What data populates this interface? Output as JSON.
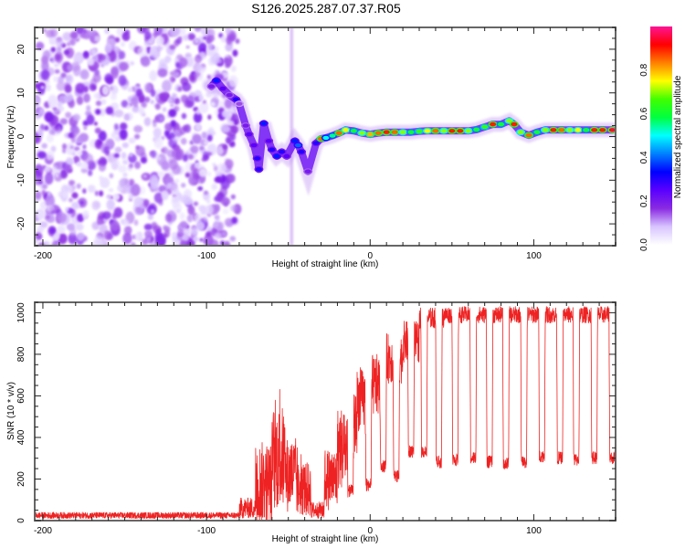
{
  "figure": {
    "title": "S126.2025.287.07.37.R05"
  },
  "chart_data": [
    {
      "type": "heatmap",
      "name": "spectrogram",
      "xlabel": "Height of straight line (km)",
      "ylabel": "Frequency (Hz)",
      "xlim": [
        -205,
        150
      ],
      "ylim": [
        -25,
        25
      ],
      "xticks": [
        -200,
        -100,
        0,
        100
      ],
      "yticks": [
        -20,
        -10,
        0,
        10,
        20
      ],
      "x_minor_step": 10,
      "y_minor_step": 2.5,
      "colorbar": {
        "label": "Normalized spectral amplitude",
        "range": [
          0.0,
          1.0
        ],
        "ticks": [
          "0.0",
          "0.2",
          "0.4",
          "0.6",
          "0.8"
        ],
        "colormap": [
          "#ffffff",
          "#d8c4ff",
          "#8a2be2",
          "#5a00ff",
          "#0000ff",
          "#0080ff",
          "#00ffff",
          "#00ff40",
          "#40ff00",
          "#ffff00",
          "#ff8000",
          "#ff0000",
          "#ff1493"
        ]
      },
      "noise_region": {
        "x_from": -205,
        "x_to": -85,
        "y_from": -25,
        "y_to": 25,
        "amplitude": 0.12
      },
      "signal_track": [
        {
          "x": -97,
          "y": 11.5,
          "a": 0.2
        },
        {
          "x": -94,
          "y": 12.8,
          "a": 0.35
        },
        {
          "x": -90,
          "y": 11,
          "a": 0.25
        },
        {
          "x": -86,
          "y": 9.5,
          "a": 0.2
        },
        {
          "x": -82,
          "y": 8.5,
          "a": 0.3
        },
        {
          "x": -80,
          "y": 7.5,
          "a": 0.15
        },
        {
          "x": -76,
          "y": 2.5,
          "a": 0.2
        },
        {
          "x": -74,
          "y": 0.5,
          "a": 0.25
        },
        {
          "x": -71,
          "y": -2,
          "a": 0.25
        },
        {
          "x": -69,
          "y": -5,
          "a": 0.3
        },
        {
          "x": -68,
          "y": -7.5,
          "a": 0.3
        },
        {
          "x": -65,
          "y": 3,
          "a": 0.35
        },
        {
          "x": -62,
          "y": -1,
          "a": 0.25
        },
        {
          "x": -60,
          "y": -3,
          "a": 0.3
        },
        {
          "x": -57,
          "y": -4.5,
          "a": 0.35
        },
        {
          "x": -54,
          "y": -3.5,
          "a": 0.3
        },
        {
          "x": -51,
          "y": -4.5,
          "a": 0.25
        },
        {
          "x": -46,
          "y": -1,
          "a": 0.35
        },
        {
          "x": -44,
          "y": -2,
          "a": 0.4
        },
        {
          "x": -42,
          "y": -3.5,
          "a": 0.3
        },
        {
          "x": -38,
          "y": -8,
          "a": 0.2
        },
        {
          "x": -33,
          "y": -1.5,
          "a": 0.3
        },
        {
          "x": -30,
          "y": -0.5,
          "a": 0.85
        },
        {
          "x": -27,
          "y": -0.3,
          "a": 0.5
        },
        {
          "x": -23,
          "y": 0.2,
          "a": 0.55
        },
        {
          "x": -19,
          "y": 0.8,
          "a": 0.85
        },
        {
          "x": -15,
          "y": 1.5,
          "a": 0.75
        },
        {
          "x": -10,
          "y": 1.3,
          "a": 0.6
        },
        {
          "x": -5,
          "y": 0.8,
          "a": 0.7
        },
        {
          "x": 0,
          "y": 0.5,
          "a": 0.8
        },
        {
          "x": 5,
          "y": 0.8,
          "a": 0.85
        },
        {
          "x": 10,
          "y": 1.0,
          "a": 0.9
        },
        {
          "x": 15,
          "y": 1.0,
          "a": 0.85
        },
        {
          "x": 20,
          "y": 1.0,
          "a": 0.7
        },
        {
          "x": 25,
          "y": 1.0,
          "a": 0.6
        },
        {
          "x": 30,
          "y": 1.2,
          "a": 0.65
        },
        {
          "x": 35,
          "y": 1.3,
          "a": 0.75
        },
        {
          "x": 40,
          "y": 1.3,
          "a": 0.85
        },
        {
          "x": 45,
          "y": 1.3,
          "a": 0.7
        },
        {
          "x": 50,
          "y": 1.3,
          "a": 0.9
        },
        {
          "x": 55,
          "y": 1.3,
          "a": 0.9
        },
        {
          "x": 60,
          "y": 1.3,
          "a": 0.7
        },
        {
          "x": 65,
          "y": 1.6,
          "a": 0.6
        },
        {
          "x": 70,
          "y": 2.2,
          "a": 0.65
        },
        {
          "x": 75,
          "y": 2.8,
          "a": 0.9
        },
        {
          "x": 80,
          "y": 2.8,
          "a": 0.6
        },
        {
          "x": 85,
          "y": 3.6,
          "a": 0.7
        },
        {
          "x": 88,
          "y": 2.8,
          "a": 0.9
        },
        {
          "x": 92,
          "y": 1.0,
          "a": 0.7
        },
        {
          "x": 97,
          "y": 0.3,
          "a": 0.85
        },
        {
          "x": 102,
          "y": 1.0,
          "a": 0.6
        },
        {
          "x": 107,
          "y": 1.5,
          "a": 0.7
        },
        {
          "x": 112,
          "y": 1.5,
          "a": 0.9
        },
        {
          "x": 117,
          "y": 1.5,
          "a": 0.85
        },
        {
          "x": 122,
          "y": 1.5,
          "a": 0.7
        },
        {
          "x": 127,
          "y": 1.5,
          "a": 0.75
        },
        {
          "x": 132,
          "y": 1.5,
          "a": 0.6
        },
        {
          "x": 137,
          "y": 1.5,
          "a": 0.9
        },
        {
          "x": 142,
          "y": 1.5,
          "a": 0.9
        },
        {
          "x": 148,
          "y": 1.5,
          "a": 0.95
        }
      ],
      "vertical_streaks": [
        {
          "x": -48,
          "y_from": -25,
          "y_to": 25,
          "a": 0.15
        }
      ]
    },
    {
      "type": "line",
      "name": "snr",
      "xlabel": "Height of straight line (km)",
      "ylabel": "SNR (10 * v/v)",
      "xlim": [
        -205,
        150
      ],
      "ylim": [
        0,
        1050
      ],
      "xticks": [
        -200,
        -100,
        0,
        100
      ],
      "yticks": [
        0,
        200,
        400,
        600,
        800,
        1000
      ],
      "x_minor_step": 10,
      "y_minor_step": 50,
      "color": "#ee2222",
      "series": [
        {
          "name": "SNR",
          "segments": [
            {
              "x_from": -205,
              "x_to": -80,
              "level": 25,
              "noise": 15
            },
            {
              "x_from": -80,
              "x_to": -70,
              "level": 60,
              "noise": 50
            },
            {
              "x_from": -70,
              "x_to": -60,
              "level": 180,
              "noise": 200,
              "peak": 400
            },
            {
              "x_from": -60,
              "x_to": -52,
              "level": 300,
              "noise": 250,
              "peak": 640
            },
            {
              "x_from": -52,
              "x_to": -45,
              "level": 220,
              "noise": 180,
              "peak": 440
            },
            {
              "x_from": -45,
              "x_to": -36,
              "level": 150,
              "noise": 130,
              "peak": 360
            },
            {
              "x_from": -36,
              "x_to": -28,
              "level": 50,
              "noise": 40
            },
            {
              "x_from": -28,
              "x_to": -20,
              "level": 200,
              "noise": 150,
              "peak": 420
            },
            {
              "x_from": -20,
              "x_to": -14,
              "level": 350,
              "noise": 200,
              "peak": 600
            },
            {
              "x_from": -14,
              "x_to": -8,
              "level": 470,
              "noise": 150,
              "peak": 720
            },
            {
              "x_from": -8,
              "x_to": 0,
              "level": 580,
              "noise": 150,
              "peak": 790
            },
            {
              "x_from": 0,
              "x_to": 10,
              "level": 650,
              "noise": 150,
              "peak": 900
            },
            {
              "x_from": 10,
              "x_to": 20,
              "level": 780,
              "noise": 120,
              "peak": 880
            },
            {
              "x_from": 20,
              "x_to": 30,
              "level": 860,
              "noise": 100,
              "peak": 950
            },
            {
              "x_from": 30,
              "x_to": 45,
              "level": 975,
              "noise": 50
            },
            {
              "x_from": 45,
              "x_to": 150,
              "level": 990,
              "noise": 40
            }
          ],
          "dropouts": [
            {
              "x": -12,
              "low": 130
            },
            {
              "x": -1,
              "low": 160
            },
            {
              "x": 8,
              "low": 250
            },
            {
              "x": 16,
              "low": 200
            },
            {
              "x": 25,
              "low": 320
            },
            {
              "x": 33,
              "low": 320
            },
            {
              "x": 42,
              "low": 270
            },
            {
              "x": 52,
              "low": 280
            },
            {
              "x": 63,
              "low": 290
            },
            {
              "x": 73,
              "low": 270
            },
            {
              "x": 83,
              "low": 260
            },
            {
              "x": 94,
              "low": 270
            },
            {
              "x": 105,
              "low": 300
            },
            {
              "x": 116,
              "low": 290
            },
            {
              "x": 126,
              "low": 280
            },
            {
              "x": 137,
              "low": 290
            },
            {
              "x": 148,
              "low": 290
            }
          ]
        }
      ]
    }
  ]
}
